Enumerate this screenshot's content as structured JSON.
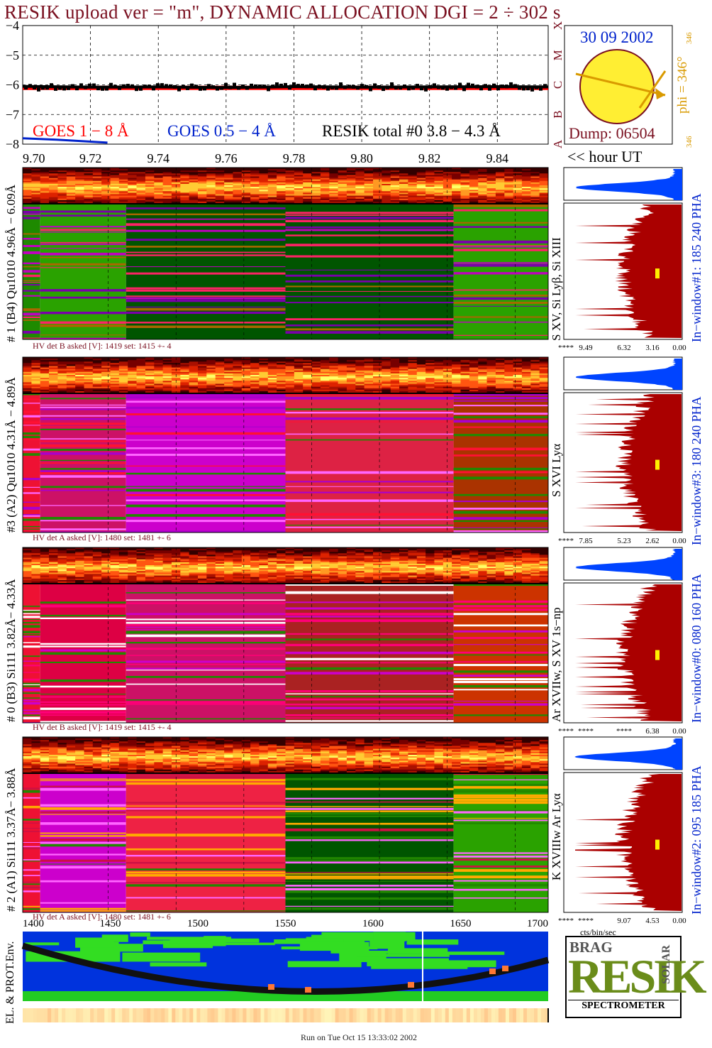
{
  "title": "RESIK upload ver = \"m\", DYNAMIC ALLOCATION  DGI =   2 ÷ 302 s",
  "colors": {
    "dark_red": "#7a1020",
    "goes_red": "#ff0000",
    "goes_blue": "#0022cc",
    "sun_yellow": "#ffee33",
    "orange": "#d99a00",
    "spectrum": "#aa0000",
    "pha": "#0044ff",
    "green_dark": "#005500"
  },
  "top_panel": {
    "legend": {
      "goes_long": "GOES 1 − 8 Å",
      "goes_short": "GOES 0.5 − 4 Å",
      "resik": "RESIK total #0  3.8 − 4.3 Å"
    },
    "class_letters": [
      "A",
      "B",
      "C",
      "M",
      "X"
    ]
  },
  "sun_panel": {
    "date": "30 09 2002",
    "phi": "phi = 346°",
    "phi_small_top": "346",
    "phi_small_bottom": "346",
    "dump": "Dump: 06504"
  },
  "hour_label": "<< hour UT",
  "hv_labels": [
    "HV det B asked [V]:  1419 set:  1415  +-    4",
    "HV det A asked [V]:  1480 set:  1481  +-    6",
    "HV det B asked [V]:  1419 set:  1415  +-    4",
    "HV det A asked [V]:  1480 set:  1481  +-    6"
  ],
  "detectors": [
    {
      "label": "# 1 (B4) Qu1010 4.96Å − 6.09Å",
      "lines": "S XV, Si Lyβ, Si XIII",
      "window": "In−window#1:  185 240 PHA",
      "ticks": [
        "****",
        "9.49",
        "6.32",
        "3.16",
        "0.00"
      ]
    },
    {
      "label": "#3 (A2) Qu1010  4.31Å − 4.89Å",
      "lines": "S XVI Lyα",
      "window": "In−window#3:  180 240 PHA",
      "ticks": [
        "****",
        "7.85",
        "5.23",
        "2.62",
        "0.00"
      ]
    },
    {
      "label": "# 0 (B3) Si111  3.82Å− 4.33Å",
      "lines": "Ar XVIIw,  S XV 1s−np",
      "window": "In−window#0:  080 160 PHA",
      "ticks": [
        "****",
        "****",
        "****",
        "6.38",
        "0.00"
      ]
    },
    {
      "label": "# 2 (A1) Si111  3.37Å− 3.88Å",
      "lines": "K XVIIIw  Ar Lyα",
      "window": "In−window#2:  095 185 PHA",
      "ticks": [
        "****",
        "****",
        "9.07",
        "4.53",
        "0.00"
      ]
    }
  ],
  "spectrum_unit": "cts/bin/sec",
  "env_label": "EL. & PROT.Env.",
  "logo": {
    "letters": "RESIK",
    "small": "BRAG",
    "solar": "SOLAR",
    "caption": "SPECTROMETER"
  },
  "footer": "Run on Tue Oct 15 13:33:02 2002",
  "chart_data": [
    {
      "type": "line",
      "title": "RESIK upload ver = \"m\", DYNAMIC ALLOCATION  DGI =   2 ÷ 302 s",
      "xlabel": "<< hour UT",
      "x_ticks": [
        "9.70",
        "9.72",
        "9.74",
        "9.76",
        "9.78",
        "9.80",
        "9.82",
        "9.84"
      ],
      "xlim": [
        9.7,
        9.855
      ],
      "y_ticks": [
        "−4",
        "−5",
        "−6",
        "−7",
        "−8"
      ],
      "ylim": [
        -8,
        -4
      ],
      "grid": true,
      "series": [
        {
          "name": "GOES 1 − 8 Å",
          "x": [
            9.7,
            9.72,
            9.74,
            9.76,
            9.78,
            9.8,
            9.82,
            9.84,
            9.855
          ],
          "y": [
            -6.1,
            -6.1,
            -6.1,
            -6.1,
            -6.1,
            -6.1,
            -6.1,
            -6.1,
            -6.1
          ]
        },
        {
          "name": "GOES 0.5 − 4 Å",
          "x": [
            9.7,
            9.71,
            9.725
          ],
          "y": [
            -7.8,
            -7.85,
            -7.95
          ]
        },
        {
          "name": "RESIK total #0  3.8 − 4.3 Å",
          "x": [
            9.7,
            9.72,
            9.74,
            9.76,
            9.78,
            9.8,
            9.82,
            9.84,
            9.855
          ],
          "y": [
            -6.05,
            -6.08,
            -6.07,
            -6.09,
            -6.06,
            -6.08,
            -6.07,
            -6.06,
            -6.07
          ]
        }
      ]
    },
    {
      "type": "heatmap",
      "xlabel": "",
      "x_ticks": [
        "1400",
        "1450",
        "1500",
        "1550",
        "1600",
        "1650",
        "1700"
      ],
      "xlim": [
        1400,
        1700
      ],
      "segments": [
        1400,
        1410,
        1459,
        1550,
        1646,
        1700
      ],
      "panels": 4
    }
  ]
}
